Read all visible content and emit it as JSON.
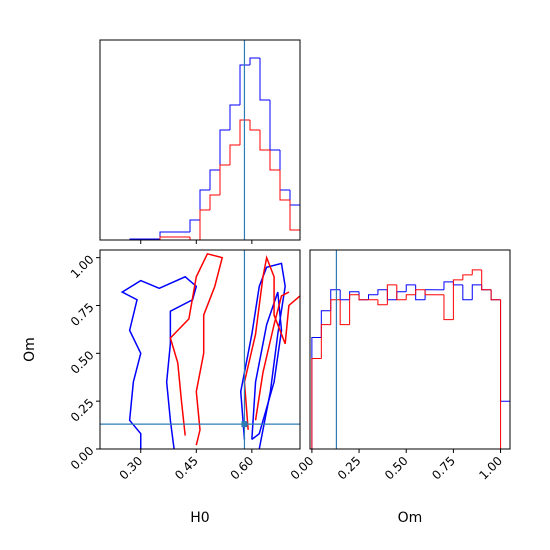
{
  "chart_data": [
    {
      "type": "histogram",
      "bins": [
        0.19,
        0.217,
        0.244,
        0.271,
        0.298,
        0.325,
        0.352,
        0.379,
        0.406,
        0.433,
        0.46,
        0.487,
        0.514,
        0.541,
        0.568,
        0.595,
        0.622,
        0.649,
        0.676,
        0.703,
        0.73
      ],
      "series": [
        {
          "color": "#0000ff",
          "values": [
            0,
            0,
            0,
            1,
            1,
            1,
            8,
            8,
            8,
            20,
            50,
            70,
            110,
            135,
            175,
            182,
            140,
            90,
            50,
            35
          ]
        },
        {
          "color": "#ff0000",
          "values": [
            0,
            0,
            0,
            0,
            0,
            0,
            3,
            3,
            3,
            0,
            30,
            45,
            75,
            95,
            120,
            110,
            90,
            70,
            40,
            10
          ]
        }
      ],
      "xlim": [
        0.19,
        0.73
      ],
      "ylim": [
        0,
        200
      ],
      "truth": 0.58,
      "truth_color": "#2c7bb6"
    },
    {
      "type": "contour",
      "xlabel": "H0",
      "ylabel": "Om",
      "xlim": [
        0.19,
        0.73
      ],
      "ylim": [
        0,
        1.04
      ],
      "xticks": [
        {
          "value": 0.3,
          "label": "0.30"
        },
        {
          "value": 0.45,
          "label": "0.45"
        },
        {
          "value": 0.6,
          "label": "0.60"
        }
      ],
      "yticks": [
        {
          "value": 0,
          "label": "0.00"
        },
        {
          "value": 0.25,
          "label": "0.25"
        },
        {
          "value": 0.5,
          "label": "0.50"
        },
        {
          "value": 0.75,
          "label": "0.75"
        },
        {
          "value": 1,
          "label": "1.00"
        }
      ],
      "contours": [
        {
          "color": "#0000ff",
          "x": [
            0.3,
            0.3,
            0.27,
            0.28,
            0.3,
            0.27,
            0.29,
            0.25,
            0.3,
            0.35,
            0.42,
            0.45,
            0.44,
            0.38,
            0.38,
            0.37,
            0.38,
            0.39
          ],
          "y": [
            0.0,
            0.08,
            0.15,
            0.35,
            0.5,
            0.62,
            0.78,
            0.82,
            0.88,
            0.84,
            0.9,
            0.85,
            0.78,
            0.72,
            0.55,
            0.35,
            0.15,
            0.0
          ]
        },
        {
          "color": "#0000ff",
          "x": [
            0.58,
            0.57,
            0.6,
            0.62,
            0.64,
            0.68,
            0.69,
            0.67,
            0.65,
            0.63,
            0.62
          ],
          "y": [
            0.05,
            0.3,
            0.6,
            0.85,
            0.95,
            0.97,
            0.85,
            0.6,
            0.3,
            0.1,
            0.0
          ]
        },
        {
          "color": "#0000ff",
          "x": [
            0.6,
            0.61,
            0.64,
            0.67,
            0.68,
            0.66,
            0.62,
            0.6
          ],
          "y": [
            0.05,
            0.35,
            0.65,
            0.82,
            0.62,
            0.35,
            0.08,
            0.05
          ]
        },
        {
          "color": "#ff0000",
          "x": [
            0.42,
            0.41,
            0.4,
            0.38,
            0.43,
            0.45,
            0.48,
            0.52,
            0.5,
            0.47,
            0.47,
            0.45,
            0.46,
            0.45
          ],
          "y": [
            0.07,
            0.25,
            0.45,
            0.58,
            0.68,
            0.9,
            1.02,
            1.0,
            0.85,
            0.7,
            0.5,
            0.3,
            0.1,
            0.02
          ]
        },
        {
          "color": "#ff0000",
          "x": [
            0.59,
            0.58,
            0.61,
            0.63,
            0.64,
            0.66,
            0.66,
            0.69,
            0.7,
            0.73
          ],
          "y": [
            0.1,
            0.35,
            0.6,
            0.9,
            1.0,
            0.9,
            0.7,
            0.55,
            0.75,
            0.8
          ]
        },
        {
          "color": "#ff0000",
          "x": [
            0.61,
            0.63,
            0.66,
            0.68,
            0.7
          ],
          "y": [
            0.15,
            0.4,
            0.65,
            0.8,
            0.82
          ]
        }
      ],
      "truth_x": 0.58,
      "truth_y": 0.13,
      "truth_color": "#2c7bb6"
    },
    {
      "type": "histogram",
      "xlabel": "Om",
      "bins": [
        0,
        0.05,
        0.1,
        0.15,
        0.2,
        0.25,
        0.3,
        0.35,
        0.4,
        0.45,
        0.5,
        0.55,
        0.6,
        0.65,
        0.7,
        0.75,
        0.8,
        0.85,
        0.9,
        0.95,
        1.0,
        1.05
      ],
      "series": [
        {
          "color": "#0000ff",
          "values": [
            112,
            139,
            160,
            150,
            158,
            150,
            155,
            160,
            150,
            158,
            165,
            150,
            160,
            160,
            168,
            165,
            150,
            165,
            160,
            150,
            48
          ]
        },
        {
          "color": "#ff0000",
          "values": [
            91,
            125,
            150,
            125,
            155,
            150,
            150,
            145,
            165,
            150,
            155,
            160,
            155,
            155,
            130,
            170,
            175,
            180,
            160,
            150,
            0
          ]
        }
      ],
      "xlim": [
        -0.01,
        1.05
      ],
      "ylim": [
        0,
        200
      ],
      "xticks": [
        {
          "value": 0,
          "label": "0.00"
        },
        {
          "value": 0.25,
          "label": "0.25"
        },
        {
          "value": 0.5,
          "label": "0.50"
        },
        {
          "value": 0.75,
          "label": "0.75"
        },
        {
          "value": 1,
          "label": "1.00"
        }
      ],
      "truth": 0.13,
      "truth_color": "#2c7bb6"
    }
  ]
}
